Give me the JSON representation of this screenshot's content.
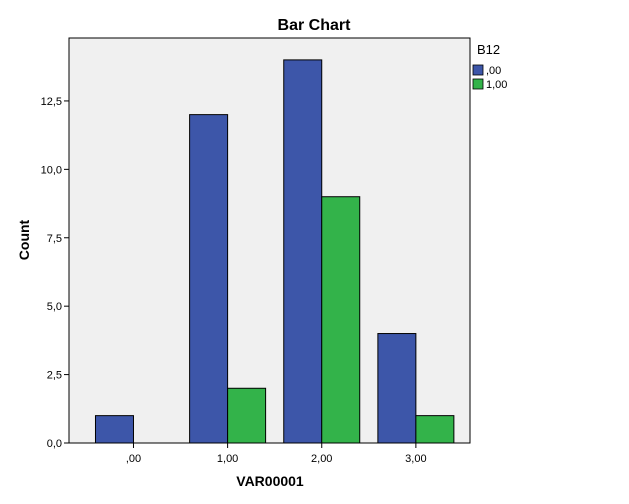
{
  "chart_data": {
    "type": "bar",
    "title": "Bar Chart",
    "xlabel": "VAR00001",
    "ylabel": "Count",
    "categories": [
      ",00",
      "1,00",
      "2,00",
      "3,00"
    ],
    "series": [
      {
        "name": ",00",
        "values": [
          1,
          12,
          14,
          4
        ],
        "color": "#3d56a9"
      },
      {
        "name": "1,00",
        "values": [
          null,
          2,
          9,
          1
        ],
        "color": "#33b34a"
      }
    ],
    "legend": {
      "title": "B12",
      "placement": "top-right outside"
    },
    "ylim": [
      0,
      14.8
    ],
    "yticks": [
      {
        "value": 0,
        "label": "0,0"
      },
      {
        "value": 2.5,
        "label": "2,5"
      },
      {
        "value": 5,
        "label": "5,0"
      },
      {
        "value": 7.5,
        "label": "7,5"
      },
      {
        "value": 10,
        "label": "10,0"
      },
      {
        "value": 12.5,
        "label": "12,5"
      }
    ],
    "plot_background": "#f0f0f0",
    "grid": false
  }
}
